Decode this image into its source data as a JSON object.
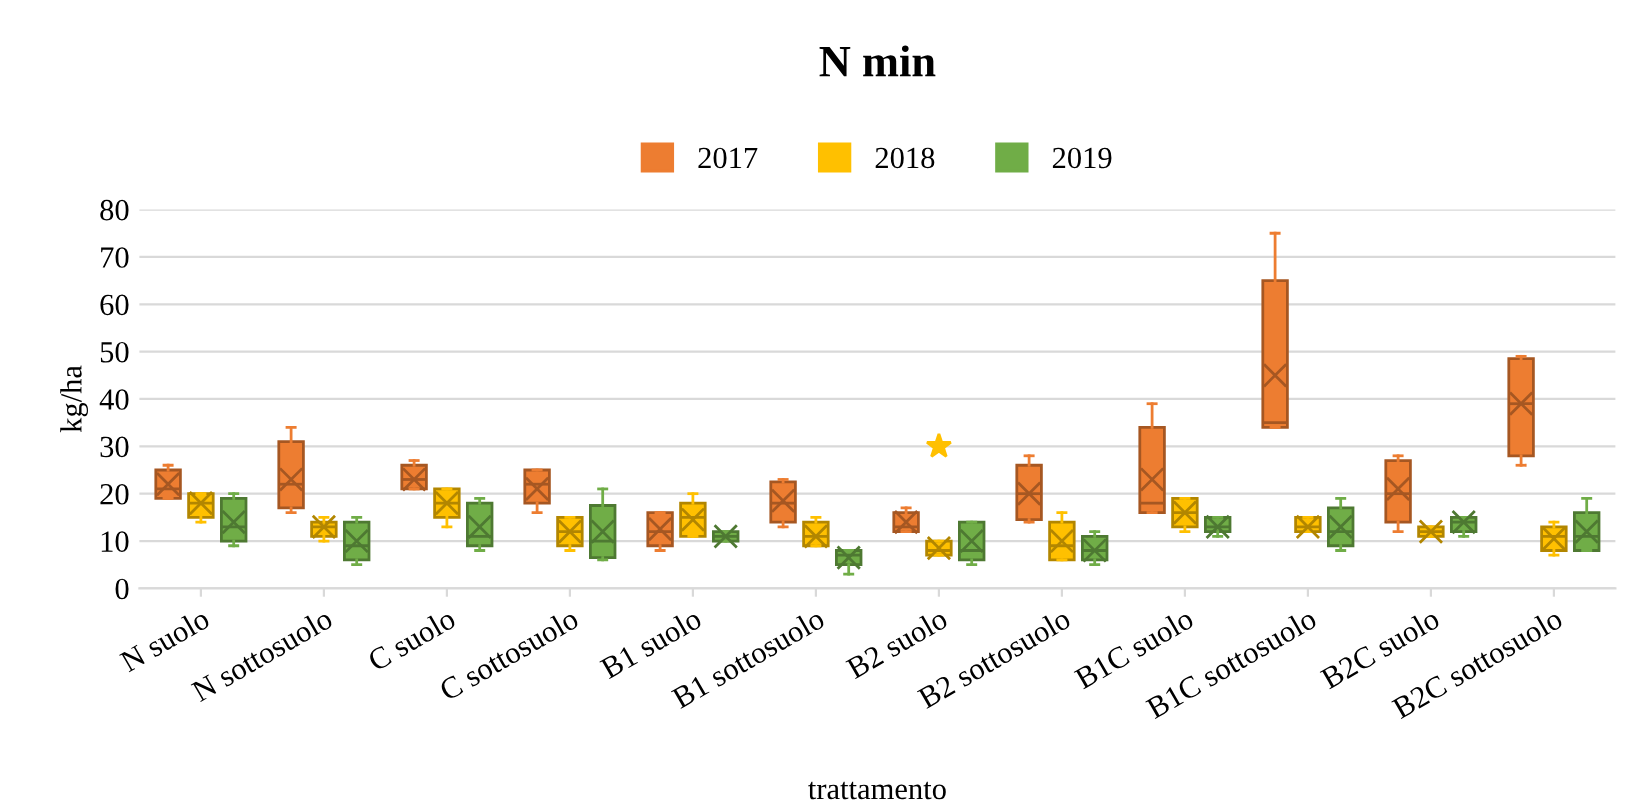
{
  "chart_data": {
    "type": "box",
    "title": "N min",
    "xlabel": "trattamento",
    "ylabel": "kg/ha",
    "categories": [
      "N suolo",
      "N sottosuolo",
      "C suolo",
      "C sottosuolo",
      "B1 suolo",
      "B1 sottosuolo",
      "B2 suolo",
      "B2 sottosuolo",
      "B1C suolo",
      "B1C sottosuolo",
      "B2C suolo",
      "B2C sottosuolo"
    ],
    "ylim": [
      0,
      80
    ],
    "yticks": [
      0,
      10,
      20,
      30,
      40,
      50,
      60,
      70,
      80
    ],
    "grid": "y",
    "legend": "top",
    "series": [
      {
        "name": "2017",
        "color": "#ed7d31",
        "boxes": [
          {
            "low": 19,
            "q1": 19,
            "median": 21,
            "q3": 25,
            "high": 26,
            "mean": 22
          },
          {
            "low": 16,
            "q1": 17,
            "median": 22,
            "q3": 31,
            "high": 34,
            "mean": 23
          },
          {
            "low": 21,
            "q1": 21,
            "median": 23,
            "q3": 26,
            "high": 27,
            "mean": 23
          },
          {
            "low": 16,
            "q1": 18,
            "median": 22,
            "q3": 25,
            "high": 25,
            "mean": 21
          },
          {
            "low": 8,
            "q1": 9,
            "median": 12,
            "q3": 16,
            "high": 16,
            "mean": 12.5
          },
          {
            "low": 13,
            "q1": 14,
            "median": 18,
            "q3": 22.5,
            "high": 23,
            "mean": 18.5
          },
          {
            "low": 12,
            "q1": 12,
            "median": 13,
            "q3": 16,
            "high": 17,
            "mean": 14
          },
          {
            "low": 14,
            "q1": 14.5,
            "median": 20,
            "q3": 26,
            "high": 28,
            "mean": 20
          },
          {
            "low": 16,
            "q1": 16,
            "median": 18,
            "q3": 34,
            "high": 39,
            "mean": 23
          },
          {
            "low": 34,
            "q1": 34,
            "median": 35,
            "q3": 65,
            "high": 75,
            "mean": 45
          },
          {
            "low": 12,
            "q1": 14,
            "median": 20,
            "q3": 27,
            "high": 28,
            "mean": 21
          },
          {
            "low": 26,
            "q1": 28,
            "median": 39,
            "q3": 48.5,
            "high": 49,
            "mean": 39
          }
        ]
      },
      {
        "name": "2018",
        "color": "#ffc000",
        "boxes": [
          {
            "low": 14,
            "q1": 15,
            "median": 18,
            "q3": 20,
            "high": 20,
            "mean": 18
          },
          {
            "low": 10,
            "q1": 11,
            "median": 13,
            "q3": 14,
            "high": 15,
            "mean": 13
          },
          {
            "low": 13,
            "q1": 15,
            "median": 18,
            "q3": 21,
            "high": 21,
            "mean": 18
          },
          {
            "low": 8,
            "q1": 9,
            "median": 12,
            "q3": 15,
            "high": 15,
            "mean": 12
          },
          {
            "low": 11,
            "q1": 11,
            "median": 15,
            "q3": 18,
            "high": 20,
            "mean": 14.5
          },
          {
            "low": 9,
            "q1": 9,
            "median": 11,
            "q3": 14,
            "high": 15,
            "mean": 11
          },
          {
            "low": 7,
            "q1": 7,
            "median": 8,
            "q3": 10,
            "high": 10,
            "mean": 8.5,
            "outliers": [
              30
            ]
          },
          {
            "low": 6,
            "q1": 6,
            "median": 9,
            "q3": 14,
            "high": 16,
            "mean": 10
          },
          {
            "low": 12,
            "q1": 13,
            "median": 16,
            "q3": 19,
            "high": 19,
            "mean": 16
          },
          {
            "low": 12,
            "q1": 12,
            "median": 13,
            "q3": 15,
            "high": 15,
            "mean": 13
          },
          {
            "low": 11,
            "q1": 11,
            "median": 12,
            "q3": 13,
            "high": 13,
            "mean": 12
          },
          {
            "low": 7,
            "q1": 8,
            "median": 11,
            "q3": 13,
            "high": 14,
            "mean": 10.5
          }
        ]
      },
      {
        "name": "2019",
        "color": "#70ad47",
        "boxes": [
          {
            "low": 9,
            "q1": 10,
            "median": 13,
            "q3": 19,
            "high": 20,
            "mean": 14
          },
          {
            "low": 5,
            "q1": 6,
            "median": 9,
            "q3": 14,
            "high": 15,
            "mean": 10
          },
          {
            "low": 8,
            "q1": 9,
            "median": 11,
            "q3": 18,
            "high": 19,
            "mean": 13
          },
          {
            "low": 6,
            "q1": 6.5,
            "median": 10,
            "q3": 17.5,
            "high": 21,
            "mean": 12
          },
          {
            "low": 10,
            "q1": 10,
            "median": 11,
            "q3": 12,
            "high": 12,
            "mean": 11
          },
          {
            "low": 3,
            "q1": 5,
            "median": 7,
            "q3": 8,
            "high": 8,
            "mean": 6.5
          },
          {
            "low": 5,
            "q1": 6,
            "median": 8,
            "q3": 14,
            "high": 14,
            "mean": 10
          },
          {
            "low": 5,
            "q1": 6,
            "median": 8,
            "q3": 11,
            "high": 12,
            "mean": 8
          },
          {
            "low": 11,
            "q1": 12,
            "median": 13,
            "q3": 15,
            "high": 15,
            "mean": 13
          },
          {
            "low": 8,
            "q1": 9,
            "median": 12,
            "q3": 17,
            "high": 19,
            "mean": 13
          },
          {
            "low": 11,
            "q1": 12,
            "median": 14,
            "q3": 15,
            "high": 15,
            "mean": 14
          },
          {
            "low": 8,
            "q1": 8,
            "median": 11,
            "q3": 16,
            "high": 19,
            "mean": 12
          }
        ]
      }
    ]
  }
}
